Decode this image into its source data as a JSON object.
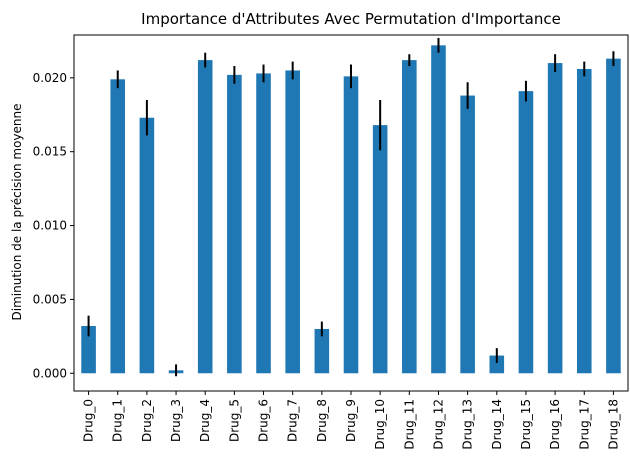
{
  "chart_data": {
    "type": "bar",
    "title": "Importance d'Attributes Avec Permutation d'Importance",
    "xlabel": "",
    "ylabel": "Diminution de la précision moyenne",
    "categories": [
      "Drug_0",
      "Drug_1",
      "Drug_2",
      "Drug_3",
      "Drug_4",
      "Drug_5",
      "Drug_6",
      "Drug_7",
      "Drug_8",
      "Drug_9",
      "Drug_10",
      "Drug_11",
      "Drug_12",
      "Drug_13",
      "Drug_14",
      "Drug_15",
      "Drug_16",
      "Drug_17",
      "Drug_18"
    ],
    "values": [
      0.0032,
      0.0199,
      0.0173,
      0.0002,
      0.0212,
      0.0202,
      0.0203,
      0.0205,
      0.003,
      0.0201,
      0.0168,
      0.0212,
      0.0222,
      0.0188,
      0.0012,
      0.0191,
      0.021,
      0.0206,
      0.0213
    ],
    "errors": [
      0.0007,
      0.0006,
      0.0012,
      0.0004,
      0.0005,
      0.0006,
      0.0006,
      0.0006,
      0.0005,
      0.0008,
      0.0017,
      0.0004,
      0.0005,
      0.0009,
      0.0005,
      0.0007,
      0.0006,
      0.0005,
      0.0005
    ],
    "ylim": [
      -0.0012,
      0.0229
    ],
    "yticks": [
      0.0,
      0.005,
      0.01,
      0.015,
      0.02
    ],
    "ytick_labels": [
      "0.000",
      "0.005",
      "0.010",
      "0.015",
      "0.020"
    ],
    "grid": false,
    "bar_color": "#1f77b4",
    "error_color": "#000000"
  }
}
